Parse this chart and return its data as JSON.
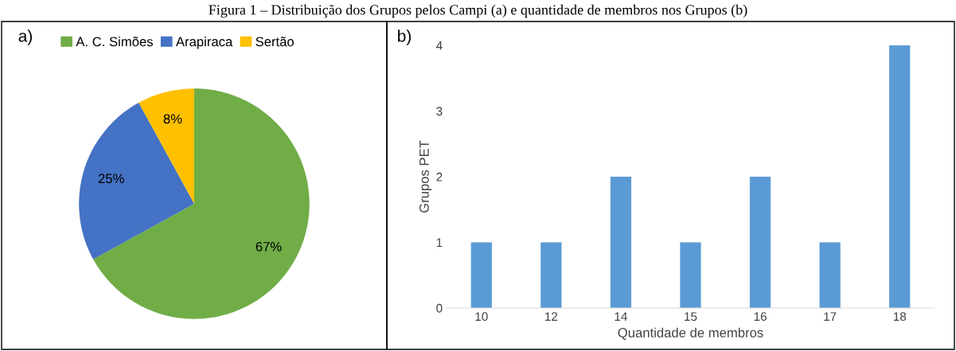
{
  "chart_data": [
    {
      "type": "pie",
      "title": "Figura 1 – Distribuição dos Grupos pelos Campi (a) e quantidade de membros nos Grupos (b)",
      "annotations": [
        "a)"
      ],
      "categories": [
        "A. C. Simões",
        "Arapiraca",
        "Sertão"
      ],
      "values": [
        67,
        25,
        8
      ],
      "colors": [
        "#70ad47",
        "#4472c4",
        "#ffc000"
      ],
      "value_labels": [
        "67%",
        "25%",
        "8%"
      ],
      "legend": "top"
    },
    {
      "type": "bar",
      "annotations": [
        "b)"
      ],
      "categories": [
        "10",
        "12",
        "14",
        "15",
        "16",
        "17",
        "18"
      ],
      "values": [
        1,
        1,
        2,
        1,
        2,
        1,
        4
      ],
      "color": "#5b9bd5",
      "xlabel": "Quantidade de membros",
      "ylabel": "Grupos PET",
      "ylim": [
        0,
        4
      ],
      "yticks": [
        0,
        1,
        2,
        3,
        4
      ],
      "grid": false
    }
  ]
}
